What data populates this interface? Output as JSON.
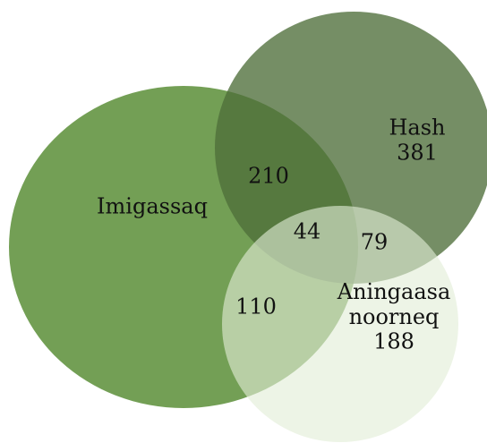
{
  "chart_data": {
    "type": "venn",
    "sets": [
      {
        "name": "Imigassaq",
        "color": "#6b9a4c"
      },
      {
        "name": "Hash",
        "value": 381,
        "color": "#4e6e3a"
      },
      {
        "name": "Aningaasa noorneq",
        "value": 188,
        "color": "#e2edd6"
      }
    ],
    "intersections": [
      {
        "sets": [
          0,
          1
        ],
        "value": 210
      },
      {
        "sets": [
          0,
          1,
          2
        ],
        "value": 44
      },
      {
        "sets": [
          1,
          2
        ],
        "value": 79
      },
      {
        "sets": [
          0,
          2
        ],
        "value": 110
      }
    ]
  }
}
